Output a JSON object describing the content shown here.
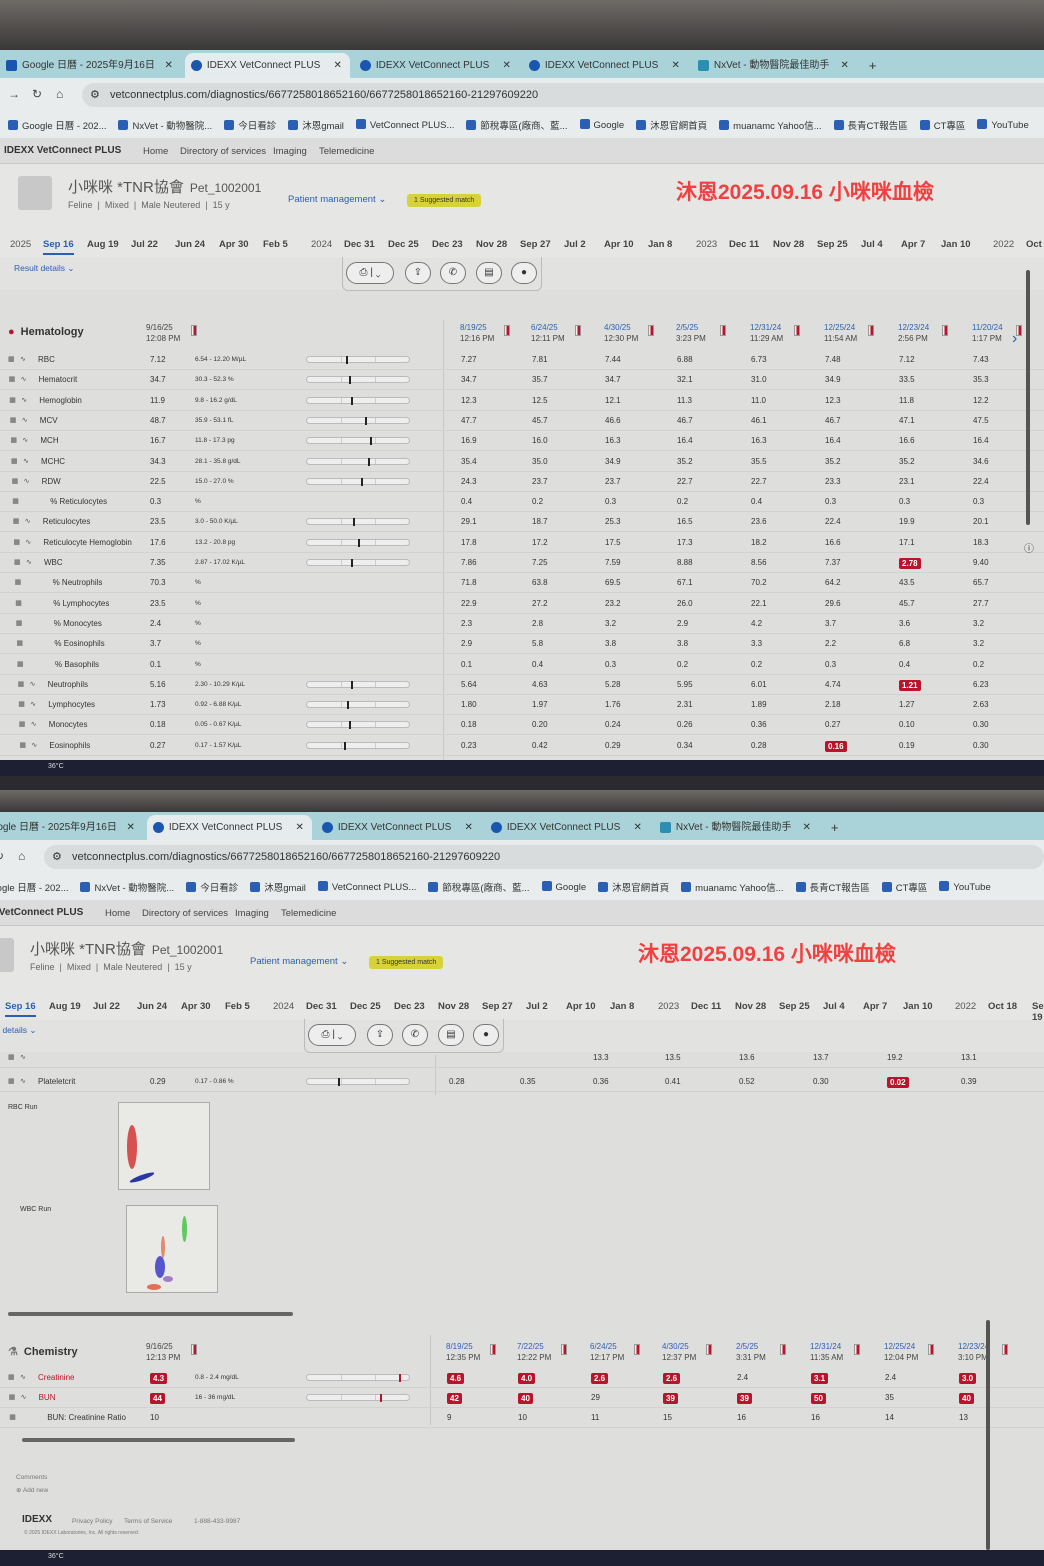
{
  "browser": {
    "tabs": [
      {
        "label": "Google 日曆 - 2025年9月16日",
        "active": false
      },
      {
        "label": "IDEXX VetConnect PLUS",
        "active": true
      },
      {
        "label": "IDEXX VetConnect PLUS",
        "active": false
      },
      {
        "label": "IDEXX VetConnect PLUS",
        "active": false
      },
      {
        "label": "NxVet - 動物醫院最佳助手",
        "active": false
      }
    ],
    "new_tab": "+",
    "url": "vetconnectplus.com/diagnostics/6677258018652160/6677258018652160-21297609220",
    "bookmarks": [
      "Google 日曆 - 202...",
      "NxVet - 動物醫院...",
      "今日看診",
      "沐恩gmail",
      "VetConnect PLUS...",
      "節稅專區(廠商、藍...",
      "Google",
      "沐恩官網首頁",
      "muanamc Yahoo信...",
      "長青CT報告區",
      "CT專區",
      "YouTube"
    ]
  },
  "app": {
    "brand": "IDEXX VetConnect PLUS",
    "nav": [
      "Home",
      "Directory of services",
      "Imaging",
      "Telemedicine"
    ]
  },
  "patient": {
    "name": "小咪咪 *TNR協會",
    "id": "Pet_1002001",
    "meta": [
      "Feline",
      "Mixed",
      "Male Neutered",
      "15 y"
    ],
    "patient_management": "Patient management",
    "suggested_match": "1 Suggested match"
  },
  "annotation": "沐恩2025.09.16  小咪咪血檢",
  "timeline": [
    {
      "year": "2025",
      "dates": [
        "Sep 16",
        "Aug 19",
        "Jul 22",
        "Jun 24",
        "Apr 30",
        "Feb 5"
      ]
    },
    {
      "year": "2024",
      "dates": [
        "Dec 31",
        "Dec 25",
        "Dec 23",
        "Nov 28",
        "Sep 27",
        "Jul 2",
        "Apr 10",
        "Jan 8"
      ]
    },
    {
      "year": "2023",
      "dates": [
        "Dec 11",
        "Nov 28",
        "Sep 25",
        "Jul 4",
        "Apr 7",
        "Jan 10"
      ]
    },
    {
      "year": "2022",
      "dates": [
        "Oct 18",
        "Sep 19"
      ]
    }
  ],
  "timeline_selected": "Sep 16",
  "toolbar": {
    "result_details": "Result details"
  },
  "hematology": {
    "title": "Hematology",
    "current": {
      "date": "9/16/25",
      "time": "12:08 PM"
    },
    "history_headers": [
      {
        "date": "8/19/25",
        "time": "12:16 PM"
      },
      {
        "date": "6/24/25",
        "time": "12:11 PM"
      },
      {
        "date": "4/30/25",
        "time": "12:30 PM"
      },
      {
        "date": "2/5/25",
        "time": "3:23 PM"
      },
      {
        "date": "12/31/24",
        "time": "11:29 AM"
      },
      {
        "date": "12/25/24",
        "time": "11:54 AM"
      },
      {
        "date": "12/23/24",
        "time": "2:56 PM"
      },
      {
        "date": "11/20/24",
        "time": "1:17 PM"
      }
    ],
    "rows": [
      {
        "name": "RBC",
        "value": "7.12",
        "range": "6.54 - 12.20 M/µL",
        "level": 0.38,
        "history": [
          "7.27",
          "7.81",
          "7.44",
          "6.88",
          "6.73",
          "7.48",
          "7.12",
          "7.43"
        ],
        "flags": []
      },
      {
        "name": "Hematocrit",
        "value": "34.7",
        "range": "30.3 - 52.3 %",
        "level": 0.41,
        "history": [
          "34.7",
          "35.7",
          "34.7",
          "32.1",
          "31.0",
          "34.9",
          "33.5",
          "35.3"
        ],
        "flags": []
      },
      {
        "name": "Hemoglobin",
        "value": "11.9",
        "range": "9.8 - 16.2 g/dL",
        "level": 0.43,
        "history": [
          "12.3",
          "12.5",
          "12.1",
          "11.3",
          "11.0",
          "12.3",
          "11.8",
          "12.2"
        ],
        "flags": []
      },
      {
        "name": "MCV",
        "value": "48.7",
        "range": "35.9 - 53.1 fL",
        "level": 0.57,
        "history": [
          "47.7",
          "45.7",
          "46.6",
          "46.7",
          "46.1",
          "46.7",
          "47.1",
          "47.5"
        ],
        "flags": []
      },
      {
        "name": "MCH",
        "value": "16.7",
        "range": "11.8 - 17.3 pg",
        "level": 0.62,
        "history": [
          "16.9",
          "16.0",
          "16.3",
          "16.4",
          "16.3",
          "16.4",
          "16.6",
          "16.4"
        ],
        "flags": []
      },
      {
        "name": "MCHC",
        "value": "34.3",
        "range": "28.1 - 35.8 g/dL",
        "level": 0.6,
        "history": [
          "35.4",
          "35.0",
          "34.9",
          "35.2",
          "35.5",
          "35.2",
          "35.2",
          "34.6"
        ],
        "flags": []
      },
      {
        "name": "RDW",
        "value": "22.5",
        "range": "15.0 - 27.0 %",
        "level": 0.53,
        "history": [
          "24.3",
          "23.7",
          "23.7",
          "22.7",
          "22.7",
          "23.3",
          "23.1",
          "22.4"
        ],
        "flags": []
      },
      {
        "name": "% Reticulocytes",
        "sub": true,
        "value": "0.3",
        "range": "%",
        "history": [
          "0.4",
          "0.2",
          "0.3",
          "0.2",
          "0.4",
          "0.3",
          "0.3",
          "0.3"
        ],
        "flags": []
      },
      {
        "name": "Reticulocytes",
        "value": "23.5",
        "range": "3.0 - 50.0 K/µL",
        "level": 0.45,
        "history": [
          "29.1",
          "18.7",
          "25.3",
          "16.5",
          "23.6",
          "22.4",
          "19.9",
          "20.1"
        ],
        "flags": []
      },
      {
        "name": "Reticulocyte Hemoglobin",
        "value": "17.6",
        "range": "13.2 - 20.8 pg",
        "level": 0.5,
        "history": [
          "17.8",
          "17.2",
          "17.5",
          "17.3",
          "18.2",
          "16.6",
          "17.1",
          "18.3"
        ],
        "flags": []
      },
      {
        "name": "WBC",
        "value": "7.35",
        "range": "2.87 - 17.02 K/µL",
        "level": 0.43,
        "history": [
          "7.86",
          "7.25",
          "7.59",
          "8.88",
          "8.56",
          "7.37",
          "2.78",
          "9.40"
        ],
        "flags": [
          6
        ]
      },
      {
        "name": "% Neutrophils",
        "sub": true,
        "value": "70.3",
        "range": "%",
        "history": [
          "71.8",
          "63.8",
          "69.5",
          "67.1",
          "70.2",
          "64.2",
          "43.5",
          "65.7"
        ],
        "flags": []
      },
      {
        "name": "% Lymphocytes",
        "sub": true,
        "value": "23.5",
        "range": "%",
        "history": [
          "22.9",
          "27.2",
          "23.2",
          "26.0",
          "22.1",
          "29.6",
          "45.7",
          "27.7"
        ],
        "flags": []
      },
      {
        "name": "% Monocytes",
        "sub": true,
        "value": "2.4",
        "range": "%",
        "history": [
          "2.3",
          "2.8",
          "3.2",
          "2.9",
          "4.2",
          "3.7",
          "3.6",
          "3.2"
        ],
        "flags": []
      },
      {
        "name": "% Eosinophils",
        "sub": true,
        "value": "3.7",
        "range": "%",
        "history": [
          "2.9",
          "5.8",
          "3.8",
          "3.8",
          "3.3",
          "2.2",
          "6.8",
          "3.2"
        ],
        "flags": []
      },
      {
        "name": "% Basophils",
        "sub": true,
        "value": "0.1",
        "range": "%",
        "history": [
          "0.1",
          "0.4",
          "0.3",
          "0.2",
          "0.2",
          "0.3",
          "0.4",
          "0.2"
        ],
        "flags": []
      },
      {
        "name": "Neutrophils",
        "value": "5.16",
        "range": "2.30 - 10.29 K/µL",
        "level": 0.43,
        "history": [
          "5.64",
          "4.63",
          "5.28",
          "5.95",
          "6.01",
          "4.74",
          "1.21",
          "6.23"
        ],
        "flags": [
          6
        ]
      },
      {
        "name": "Lymphocytes",
        "value": "1.73",
        "range": "0.92 - 6.88 K/µL",
        "level": 0.39,
        "history": [
          "1.80",
          "1.97",
          "1.76",
          "2.31",
          "1.89",
          "2.18",
          "1.27",
          "2.63"
        ],
        "flags": []
      },
      {
        "name": "Monocytes",
        "value": "0.18",
        "range": "0.05 - 0.67 K/µL",
        "level": 0.41,
        "history": [
          "0.18",
          "0.20",
          "0.24",
          "0.26",
          "0.36",
          "0.27",
          "0.10",
          "0.30"
        ],
        "flags": []
      },
      {
        "name": "Eosinophils",
        "value": "0.27",
        "range": "0.17 - 1.57 K/µL",
        "level": 0.36,
        "history": [
          "0.23",
          "0.42",
          "0.29",
          "0.34",
          "0.28",
          "0.16",
          "0.19",
          "0.30"
        ],
        "flags": [
          5
        ]
      },
      {
        "name": "Basophils",
        "value": "0.01",
        "range": "0.01 - 0.26 K/µL",
        "level": 0.36,
        "history": [
          "0.01",
          "0.03",
          "0.02",
          "0.02",
          "0.02",
          "0.02",
          "0.01",
          "0.02"
        ],
        "flags": []
      }
    ],
    "partial_row": {
      "history": [
        null,
        null,
        "13.3",
        "13.5",
        "13.6",
        "13.7",
        "19.2",
        "13.1"
      ]
    },
    "plateletcrit": {
      "name": "Plateletcrit",
      "value": "0.29",
      "range": "0.17 - 0.86 %",
      "level": 0.3,
      "history": [
        "0.28",
        "0.35",
        "0.36",
        "0.41",
        "0.52",
        "0.30",
        "0.02",
        "0.39"
      ],
      "flags": [
        6
      ]
    },
    "runs": {
      "rbc": "RBC Run",
      "wbc": "WBC Run"
    }
  },
  "chemistry": {
    "title": "Chemistry",
    "current": {
      "date": "9/16/25",
      "time": "12:13 PM"
    },
    "history_headers": [
      {
        "date": "8/19/25",
        "time": "12:35 PM"
      },
      {
        "date": "7/22/25",
        "time": "12:22 PM"
      },
      {
        "date": "6/24/25",
        "time": "12:17 PM"
      },
      {
        "date": "4/30/25",
        "time": "12:37 PM"
      },
      {
        "date": "2/5/25",
        "time": "3:31 PM"
      },
      {
        "date": "12/31/24",
        "time": "11:35 AM"
      },
      {
        "date": "12/25/24",
        "time": "12:04 PM"
      },
      {
        "date": "12/23/24",
        "time": "3:10 PM"
      }
    ],
    "rows": [
      {
        "name": "Creatinine",
        "abnormal": true,
        "value": "4.3",
        "value_flag": true,
        "range": "0.8 - 2.4 mg/dL",
        "level": 0.9,
        "history": [
          "4.6",
          "4.0",
          "2.6",
          "2.6",
          "2.4",
          "3.1",
          "2.4",
          "3.0"
        ],
        "flags": [
          0,
          1,
          2,
          3,
          5,
          7
        ]
      },
      {
        "name": "BUN",
        "abnormal": true,
        "value": "44",
        "value_flag": true,
        "range": "16 - 36 mg/dL",
        "level": 0.72,
        "history": [
          "42",
          "40",
          "29",
          "39",
          "39",
          "50",
          "35",
          "40"
        ],
        "flags": [
          0,
          1,
          3,
          4,
          5,
          7
        ]
      },
      {
        "name": "BUN: Creatinine Ratio",
        "sub": true,
        "value": "10",
        "range": "",
        "history": [
          "9",
          "10",
          "11",
          "15",
          "16",
          "16",
          "14",
          "13"
        ],
        "flags": []
      }
    ]
  },
  "comments": {
    "label": "Comments",
    "add_new": "Add new"
  },
  "footer": {
    "logo": "IDEXX",
    "privacy": "Privacy Policy",
    "terms": "Terms of Service",
    "phone": "1-888-433-9987",
    "copyright": "© 2025 IDEXX Laboratories, Inc. All rights reserved."
  },
  "taskbar": {
    "temperature": "36°C"
  },
  "colors": {
    "flag": "#b8142c",
    "link": "#2b5fb3",
    "annotation": "#f04040",
    "suggested_badge": "#d8d23a",
    "tab_bar": "#a9d3d8"
  }
}
